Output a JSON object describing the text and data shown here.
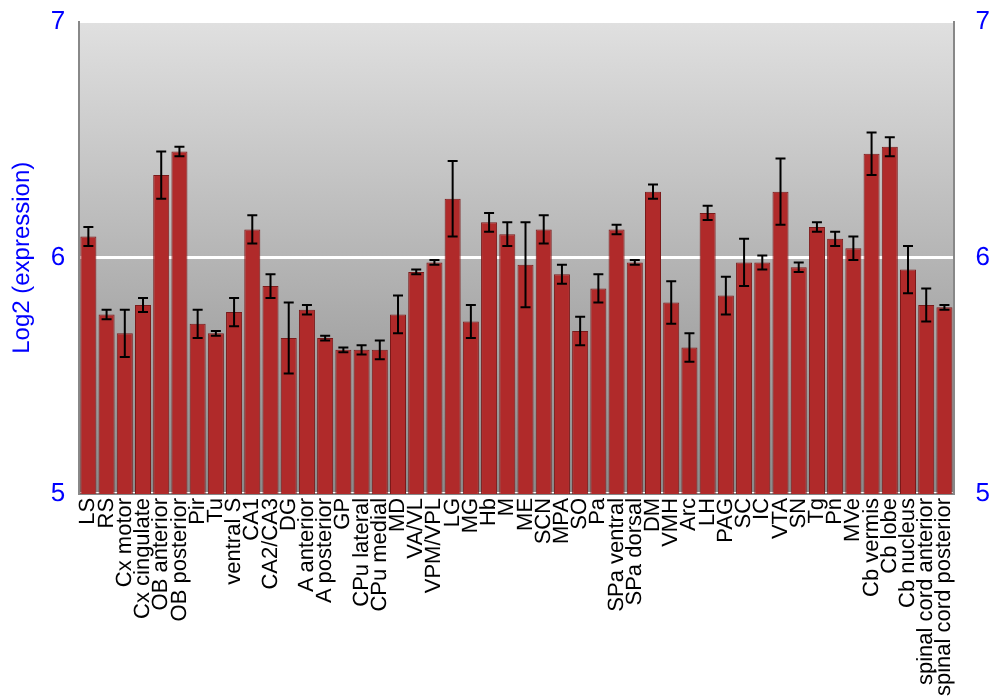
{
  "chart_data": {
    "type": "bar",
    "ylabel": "Log2 (expression)",
    "categories": [
      "LS",
      "RS",
      "Cx motor",
      "Cx cingulate",
      "OB anterior",
      "OB posterior",
      "Pir",
      "Tu",
      "ventral S",
      "CA1",
      "CA2/CA3",
      "DG",
      "A anterior",
      "A posterior",
      "GP",
      "CPu lateral",
      "CPu medial",
      "MD",
      "VA/VL",
      "VPM/VPL",
      "LG",
      "MG",
      "Hb",
      "M",
      "ME",
      "SCN",
      "MPA",
      "SO",
      "Pa",
      "SPa ventral",
      "SPa dorsal",
      "DM",
      "VMH",
      "Arc",
      "LH",
      "PAG",
      "SC",
      "IC",
      "VTA",
      "SN",
      "Tg",
      "Pn",
      "MVe",
      "Cb vermis",
      "Cb lobe",
      "Cb nucleus",
      "spinal cord anterior",
      "spinal cord posterior"
    ],
    "values": [
      6.09,
      5.76,
      5.68,
      5.8,
      6.35,
      6.45,
      5.72,
      5.68,
      5.77,
      6.12,
      5.88,
      5.66,
      5.78,
      5.66,
      5.61,
      5.61,
      5.61,
      5.76,
      5.94,
      5.98,
      6.25,
      5.73,
      6.15,
      6.1,
      5.97,
      6.12,
      5.93,
      5.69,
      5.87,
      6.12,
      5.98,
      6.28,
      5.81,
      5.62,
      6.19,
      5.84,
      5.98,
      5.98,
      6.28,
      5.96,
      6.13,
      6.08,
      6.04,
      6.44,
      6.47,
      5.95,
      5.8,
      5.79
    ],
    "errors": [
      0.04,
      0.02,
      0.1,
      0.03,
      0.1,
      0.02,
      0.06,
      0.01,
      0.06,
      0.06,
      0.05,
      0.15,
      0.02,
      0.01,
      0.01,
      0.02,
      0.04,
      0.08,
      0.01,
      0.01,
      0.16,
      0.07,
      0.04,
      0.05,
      0.18,
      0.06,
      0.04,
      0.06,
      0.06,
      0.02,
      0.01,
      0.03,
      0.09,
      0.06,
      0.03,
      0.08,
      0.1,
      0.03,
      0.14,
      0.02,
      0.02,
      0.03,
      0.05,
      0.09,
      0.04,
      0.1,
      0.07,
      0.01
    ],
    "color": "#b02a2a",
    "ylim": [
      5,
      7
    ],
    "yticks": [
      5,
      6,
      7
    ],
    "y2lim": [
      5,
      7
    ],
    "y2ticks": [
      5,
      6,
      7
    ],
    "grid": "y",
    "legend": false
  }
}
